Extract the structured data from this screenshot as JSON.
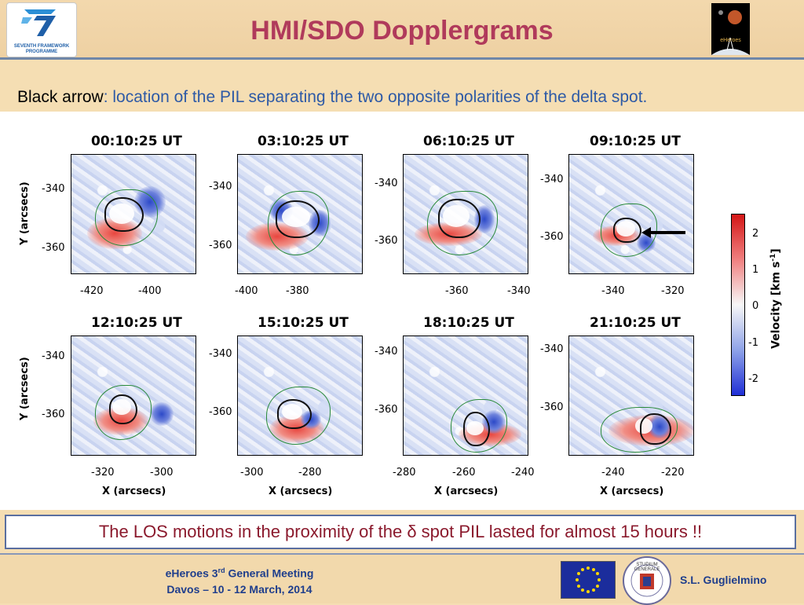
{
  "header": {
    "title": "HMI/SDO Dopplergrams",
    "left_logo": {
      "line1": "SEVENTH FRAMEWORK",
      "line2": "PROGRAMME"
    },
    "right_logo": {
      "text": "eHeroes"
    }
  },
  "subtitle": {
    "label": "Black arrow",
    "description": ": location of the PIL separating the two opposite polarities of the delta spot."
  },
  "figure": {
    "panels": [
      {
        "time": "00:10:25 UT",
        "yticks": [
          "-340",
          "-360"
        ],
        "xticks": [
          "-420",
          "-400"
        ]
      },
      {
        "time": "03:10:25 UT",
        "yticks": [
          "-340",
          "-360"
        ],
        "xticks": [
          "-400",
          "-380"
        ]
      },
      {
        "time": "06:10:25 UT",
        "yticks": [
          "-340",
          "-360"
        ],
        "xticks": [
          "-360",
          "-340"
        ]
      },
      {
        "time": "09:10:25 UT",
        "yticks": [
          "-340",
          "-360"
        ],
        "xticks": [
          "-340",
          "-320"
        ]
      },
      {
        "time": "12:10:25 UT",
        "yticks": [
          "-340",
          "-360"
        ],
        "xticks": [
          "-320",
          "-300"
        ]
      },
      {
        "time": "15:10:25 UT",
        "yticks": [
          "-340",
          "-360"
        ],
        "xticks": [
          "-300",
          "-280"
        ]
      },
      {
        "time": "18:10:25 UT",
        "yticks": [
          "-340",
          "-360"
        ],
        "xticks": [
          "-280",
          "-260",
          "-240"
        ]
      },
      {
        "time": "21:10:25 UT",
        "yticks": [
          "-340",
          "-360"
        ],
        "xticks": [
          "-240",
          "-220"
        ]
      }
    ],
    "ylabel": "Y (arcsecs)",
    "xlabel": "X (arcsecs)",
    "colorbar": {
      "label": "Velocity [km s",
      "label_sup": "-1",
      "label_end": "]",
      "ticks": [
        "2",
        "1",
        "0",
        "-1",
        "-2"
      ],
      "colors": {
        "positive": "#d41717",
        "zero": "#f7f7f7",
        "negative": "#1f2fd6"
      }
    }
  },
  "note": "The LOS motions in the proximity of the δ spot PIL lasted for almost 15 hours !!",
  "footer": {
    "meeting_prefix": "eHeroes 3",
    "meeting_sup": "rd",
    "meeting_suffix": " General Meeting",
    "dates": "Davos – 10 - 12 March, 2014",
    "author": "S.L. Guglielmino",
    "seal_text": "STUDIUM GENERALE"
  }
}
